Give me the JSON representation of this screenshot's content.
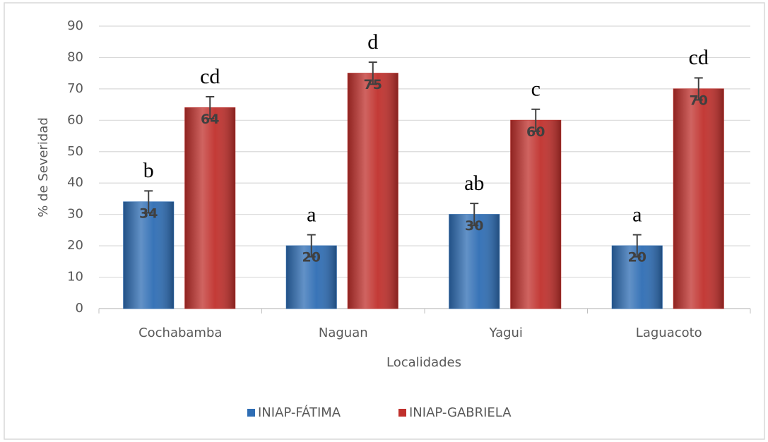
{
  "chart_data": {
    "type": "bar",
    "y_label": "% de Severidad",
    "x_label": "Localidades",
    "categories": [
      "Cochabamba",
      "Naguan",
      "Yagui",
      "Laguacoto"
    ],
    "series": [
      {
        "name": "INIAP-FÁTIMA",
        "color": "#2e6db4",
        "values": [
          34,
          20,
          30,
          20
        ],
        "errors": [
          3.5,
          3.5,
          3.5,
          3.5
        ],
        "letters": [
          "b",
          "a",
          "ab",
          "a"
        ]
      },
      {
        "name": "INIAP-GABRIELA",
        "color": "#c0302c",
        "values": [
          64,
          75,
          60,
          70
        ],
        "errors": [
          3.5,
          3.5,
          3.5,
          3.5
        ],
        "letters": [
          "cd",
          "d",
          "c",
          "cd"
        ]
      }
    ],
    "ylim": [
      0,
      90
    ],
    "yticks": [
      0,
      10,
      20,
      30,
      40,
      50,
      60,
      70,
      80,
      90
    ],
    "grid": true,
    "legend": "bottom"
  }
}
